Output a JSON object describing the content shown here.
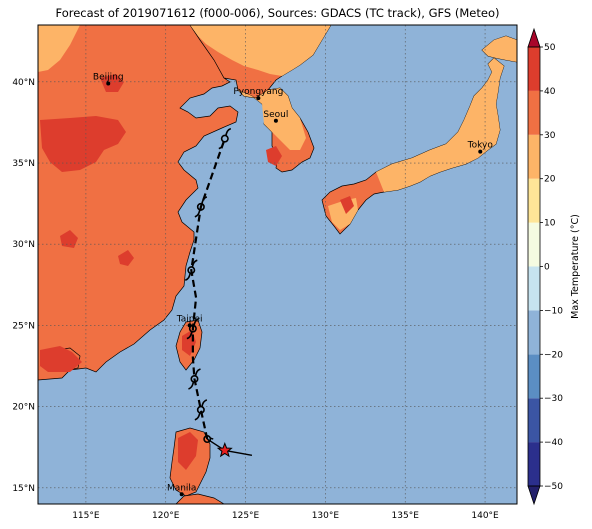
{
  "title": "Forecast of 2019071612 (f000-006), Sources: GDACS (TC track), GFS (Meteo)",
  "colors": {
    "ocean": "#8fb3d8",
    "land_hot": "#f07043",
    "land_very_hot": "#dd3d2d",
    "land_warm": "#fdb467",
    "land_mild": "#fee597"
  },
  "axes": {
    "lon_range": [
      112,
      142
    ],
    "lat_range": [
      14,
      43.5
    ],
    "lon_ticks": [
      {
        "value": 115,
        "label": "115°E"
      },
      {
        "value": 120,
        "label": "120°E"
      },
      {
        "value": 125,
        "label": "125°E"
      },
      {
        "value": 130,
        "label": "130°E"
      },
      {
        "value": 135,
        "label": "135°E"
      },
      {
        "value": 140,
        "label": "140°E"
      }
    ],
    "lat_ticks": [
      {
        "value": 15,
        "label": "15°N"
      },
      {
        "value": 20,
        "label": "20°N"
      },
      {
        "value": 25,
        "label": "25°N"
      },
      {
        "value": 30,
        "label": "30°N"
      },
      {
        "value": 35,
        "label": "35°N"
      },
      {
        "value": 40,
        "label": "40°N"
      }
    ]
  },
  "cities": [
    {
      "name": "Beijing",
      "lon": 116.4,
      "lat": 39.9
    },
    {
      "name": "Pyongyang",
      "lon": 125.8,
      "lat": 39.0
    },
    {
      "name": "Seoul",
      "lon": 126.9,
      "lat": 37.6
    },
    {
      "name": "Tokyo",
      "lon": 139.7,
      "lat": 35.7
    },
    {
      "name": "Taipei",
      "lon": 121.5,
      "lat": 25.0
    },
    {
      "name": "Manila",
      "lon": 121.0,
      "lat": 14.6
    }
  ],
  "storm": {
    "current": {
      "lon": 123.7,
      "lat": 17.3
    },
    "motion_vector_end": {
      "lon": 125.4,
      "lat": 17.0
    },
    "track": [
      {
        "lon": 122.6,
        "lat": 18.0
      },
      {
        "lon": 122.2,
        "lat": 19.8
      },
      {
        "lon": 121.8,
        "lat": 21.7
      },
      {
        "lon": 121.7,
        "lat": 23.0
      },
      {
        "lon": 121.7,
        "lat": 24.8
      },
      {
        "lon": 121.9,
        "lat": 26.7
      },
      {
        "lon": 121.6,
        "lat": 28.4
      },
      {
        "lon": 122.2,
        "lat": 32.3
      },
      {
        "lon": 123.7,
        "lat": 36.5
      }
    ],
    "symbol_points": [
      {
        "lon": 122.6,
        "lat": 18.0,
        "kind": "depression"
      },
      {
        "lon": 122.2,
        "lat": 19.8,
        "kind": "storm"
      },
      {
        "lon": 121.8,
        "lat": 21.7,
        "kind": "storm"
      },
      {
        "lon": 121.7,
        "lat": 24.8,
        "kind": "storm"
      },
      {
        "lon": 121.6,
        "lat": 28.4,
        "kind": "storm"
      },
      {
        "lon": 122.2,
        "lat": 32.3,
        "kind": "storm"
      },
      {
        "lon": 123.7,
        "lat": 36.5,
        "kind": "storm"
      }
    ]
  },
  "colorbar": {
    "label": "Max Temperature (°C)",
    "min": -50,
    "max": 50,
    "levels": [
      {
        "from": -50,
        "to": -40,
        "color": "#2b2f8c"
      },
      {
        "from": -40,
        "to": -30,
        "color": "#3b55a4"
      },
      {
        "from": -30,
        "to": -20,
        "color": "#5b8ec3"
      },
      {
        "from": -20,
        "to": -10,
        "color": "#8fb3d8"
      },
      {
        "from": -10,
        "to": 0,
        "color": "#c6e3ef"
      },
      {
        "from": 0,
        "to": 10,
        "color": "#f5fbe1"
      },
      {
        "from": 10,
        "to": 20,
        "color": "#fee597"
      },
      {
        "from": 20,
        "to": 30,
        "color": "#fdb467"
      },
      {
        "from": 30,
        "to": 40,
        "color": "#f07043"
      },
      {
        "from": 40,
        "to": 50,
        "color": "#dd3d2d"
      }
    ],
    "end_colors": {
      "low": "#23206b",
      "high": "#a8062a"
    },
    "ticks": [
      {
        "value": 50,
        "label": "50"
      },
      {
        "value": 40,
        "label": "40"
      },
      {
        "value": 30,
        "label": "30"
      },
      {
        "value": 20,
        "label": "20"
      },
      {
        "value": 10,
        "label": "10"
      },
      {
        "value": 0,
        "label": "0"
      },
      {
        "value": -10,
        "label": "−10"
      },
      {
        "value": -20,
        "label": "−20"
      },
      {
        "value": -30,
        "label": "−30"
      },
      {
        "value": -40,
        "label": "−40"
      },
      {
        "value": -50,
        "label": "−50"
      }
    ]
  }
}
